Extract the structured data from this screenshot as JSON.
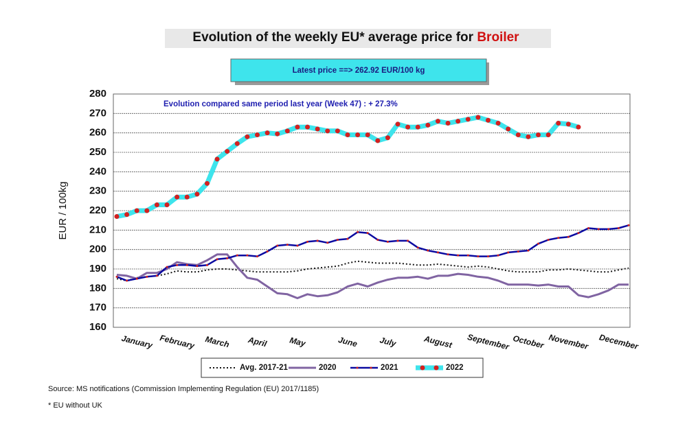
{
  "chart_data": {
    "type": "line",
    "title": "Evolution of the weekly EU* average price for",
    "title_highlight": "Broiler",
    "latest_label": "Latest price  ==>",
    "latest_value": 262.92,
    "latest_unit": "EUR/100 kg",
    "annotation": "Evolution compared same period last year   (Week 47) : + 27.3%",
    "ylabel": "EUR / 100kg",
    "source": "Source: MS notifications (Commission Implementing Regulation (EU) 2017/1185)",
    "footnote": "* EU without UK",
    "categories": [
      null,
      null,
      "January",
      null,
      null,
      null,
      "February",
      null,
      null,
      null,
      "March",
      null,
      null,
      null,
      "April",
      null,
      null,
      null,
      "May",
      null,
      null,
      null,
      null,
      "June",
      null,
      null,
      null,
      "July",
      null,
      null,
      null,
      null,
      "August",
      null,
      null,
      null,
      null,
      "September",
      null,
      null,
      null,
      "October",
      null,
      null,
      null,
      "November",
      null,
      null,
      null,
      null,
      "December",
      null
    ],
    "ylim": [
      160,
      280
    ],
    "yticks": [
      160,
      170,
      180,
      190,
      200,
      210,
      220,
      230,
      240,
      250,
      260,
      270,
      280
    ],
    "grid": true,
    "series": [
      {
        "name": "Avg. 2017-21",
        "color": "#111111",
        "dash": "2,3",
        "width": 2,
        "values": [
          185,
          184,
          185.5,
          186,
          186.5,
          187.5,
          189,
          188.5,
          188.5,
          189.5,
          190,
          190,
          189.5,
          189,
          188.5,
          188.5,
          188.5,
          188.5,
          189,
          190,
          190.5,
          191,
          191.5,
          193,
          194,
          193.5,
          193,
          193,
          193,
          192.5,
          192,
          192,
          192.5,
          192,
          191.5,
          191,
          191.5,
          191,
          190,
          189,
          188.5,
          188.5,
          188.5,
          189.5,
          189.5,
          190,
          189.5,
          189,
          188.5,
          188.5,
          189.5,
          190.5
        ]
      },
      {
        "name": "2020",
        "color": "#8064a2",
        "width": 3,
        "values": [
          187,
          186.5,
          185,
          188,
          188,
          190,
          193.5,
          192.5,
          192,
          194.5,
          197.5,
          197.5,
          191,
          185.5,
          184.5,
          181,
          177.5,
          177,
          175,
          177,
          176,
          176.5,
          178,
          181,
          182.5,
          181,
          183,
          184.5,
          185.5,
          185.5,
          186,
          185,
          186.5,
          186.5,
          187.5,
          187,
          186,
          185.5,
          184,
          182,
          182,
          182,
          181.5,
          182,
          181,
          181,
          176.5,
          175.5,
          177,
          179,
          182,
          182
        ]
      },
      {
        "name": "2021",
        "color": "#0a0aa0",
        "width": 2.5,
        "marker_color": "#d02020",
        "marker_size": 1.5,
        "values": [
          186,
          184,
          185,
          186,
          186.5,
          191,
          192,
          192,
          191.5,
          192,
          195,
          195.5,
          197,
          197,
          196.5,
          199,
          202,
          202.5,
          202,
          204,
          204.5,
          203.5,
          205,
          205.5,
          209,
          208.5,
          205,
          204,
          204.5,
          204.5,
          201,
          199.5,
          198.5,
          197.5,
          197,
          197,
          196.5,
          196.5,
          197,
          198.5,
          199,
          199.5,
          203,
          205,
          206,
          206.5,
          208.5,
          211,
          210.5,
          210.5,
          211,
          212.5
        ]
      },
      {
        "name": "2022",
        "color": "#3ee4ec",
        "width": 7,
        "marker_color": "#d42020",
        "marker_size": 3.5,
        "values": [
          217,
          218,
          220,
          220,
          223,
          223,
          227,
          227,
          228.5,
          234,
          246.5,
          250.5,
          254.5,
          258,
          259,
          260,
          259.5,
          261,
          263,
          263,
          262,
          261,
          261,
          259,
          259,
          259,
          256,
          257.5,
          264.5,
          263,
          263,
          264,
          266,
          265,
          266,
          267,
          268,
          266.5,
          265,
          262,
          259,
          258,
          259,
          259,
          265,
          264.5,
          263,
          null,
          null,
          null,
          null,
          null
        ]
      }
    ]
  }
}
